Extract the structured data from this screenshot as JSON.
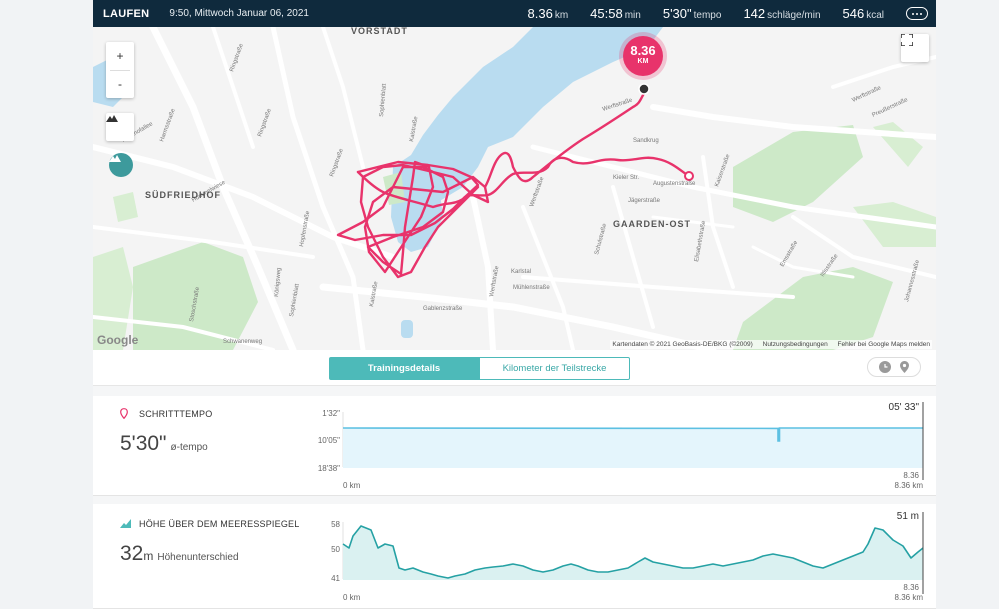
{
  "topbar": {
    "activity": "LAUFEN",
    "datetime": "9:50, Mittwoch Januar 06, 2021",
    "distance_value": "8.36",
    "distance_unit": "km",
    "duration_value": "45:58",
    "duration_unit": "min",
    "pace_value": "5'30\"",
    "pace_unit": "tempo",
    "heartrate_value": "142",
    "heartrate_unit": "schläge/min",
    "calories_value": "546",
    "calories_unit": "kcal"
  },
  "map": {
    "zoom_in": "+",
    "zoom_out": "-",
    "pin_value": "8.36",
    "pin_unit": "KM",
    "labels": {
      "vorstadt": "VORSTADT",
      "suedfriedhof": "SÜDFRIEDHOF",
      "gaarden_ost": "GAARDEN-OST"
    },
    "streets": {
      "ringstrasse_1": "Ringstraße",
      "ringstrasse_2": "Ringstraße",
      "ringstrasse_3": "Ringstraße",
      "sophienblatt_1": "Sophienblatt",
      "sophienblatt_2": "Sophienblatt",
      "kaistrasse_1": "Kaistraße",
      "kaistrasse_2": "Kaistraße",
      "werftstrasse_1": "Werftstraße",
      "werftstrasse_2": "Werftstraße",
      "werftstrasse_3": "Werftstraße",
      "werftstrasse_4": "Werftstraße",
      "hopfenstrasse": "Hopfenstraße",
      "gablenzstrasse": "Gablenzstraße",
      "kirchhofallee": "Kirchhofallee",
      "koenigsweg": "Königsweg",
      "karlstal": "Karlstal",
      "schulstrasse": "Schulstraße",
      "augustenstrasse": "Augustenstraße",
      "kaiserstrasse": "Kaiserstraße",
      "elisabethstrasse": "Elisabethstraße",
      "iltisstrasse": "Iltisstraße",
      "sandkrug": "Sandkrug",
      "harmsstrasse": "Harmsstraße",
      "hummelwiese": "Hummelwiese",
      "stoschstrasse": "Stoschstraße",
      "johannesstrasse": "Johannesstraße",
      "preusserstrasse": "Preußerstraße",
      "emsstrasse": "Emsstraße",
      "kielerstr": "Kieler Str.",
      "jaegerstrasse": "Jägerstraße",
      "muehlenstrasse": "Mühlenstraße",
      "schwanenweg": "Schwanenweg"
    },
    "google": "Google",
    "attribution": "Kartendaten © 2021 GeoBasis-DE/BKG (©2009)",
    "terms": "Nutzungsbedingungen",
    "report": "Fehler bei Google Maps melden"
  },
  "tabs": {
    "training_details": "Trainingsdetails",
    "split_km": "Kilometer der Teilstrecke"
  },
  "pace_panel": {
    "title": "SCHRITTTEMPO",
    "value": "5'30\"",
    "sub": "ø-tempo",
    "y_top": "1'32\"",
    "y_mid": "10'05\"",
    "y_bottom": "18'38\"",
    "x_start": "0 km",
    "x_end_value": "8.36",
    "x_end_unit": "8.36 km",
    "cursor_value": "05' 33\"",
    "color_line": "#5cc0e2",
    "color_fill": "#e4f5fc"
  },
  "elevation_panel": {
    "title": "HÖHE ÜBER DEM MEERESSPIEGEL",
    "value": "32",
    "unit": "m",
    "sub": "Höhenunterschied",
    "y_top": "58",
    "y_mid": "50",
    "y_bottom": "41",
    "x_start": "0 km",
    "x_end_value": "8.36",
    "x_end_unit": "8.36 km",
    "cursor_value": "51 m",
    "color_line": "#25a1a4",
    "color_fill": "#daf1f1"
  },
  "colors": {
    "route": "#e8336b",
    "topbar": "#0f2a3d",
    "accent": "#4dbab9"
  }
}
